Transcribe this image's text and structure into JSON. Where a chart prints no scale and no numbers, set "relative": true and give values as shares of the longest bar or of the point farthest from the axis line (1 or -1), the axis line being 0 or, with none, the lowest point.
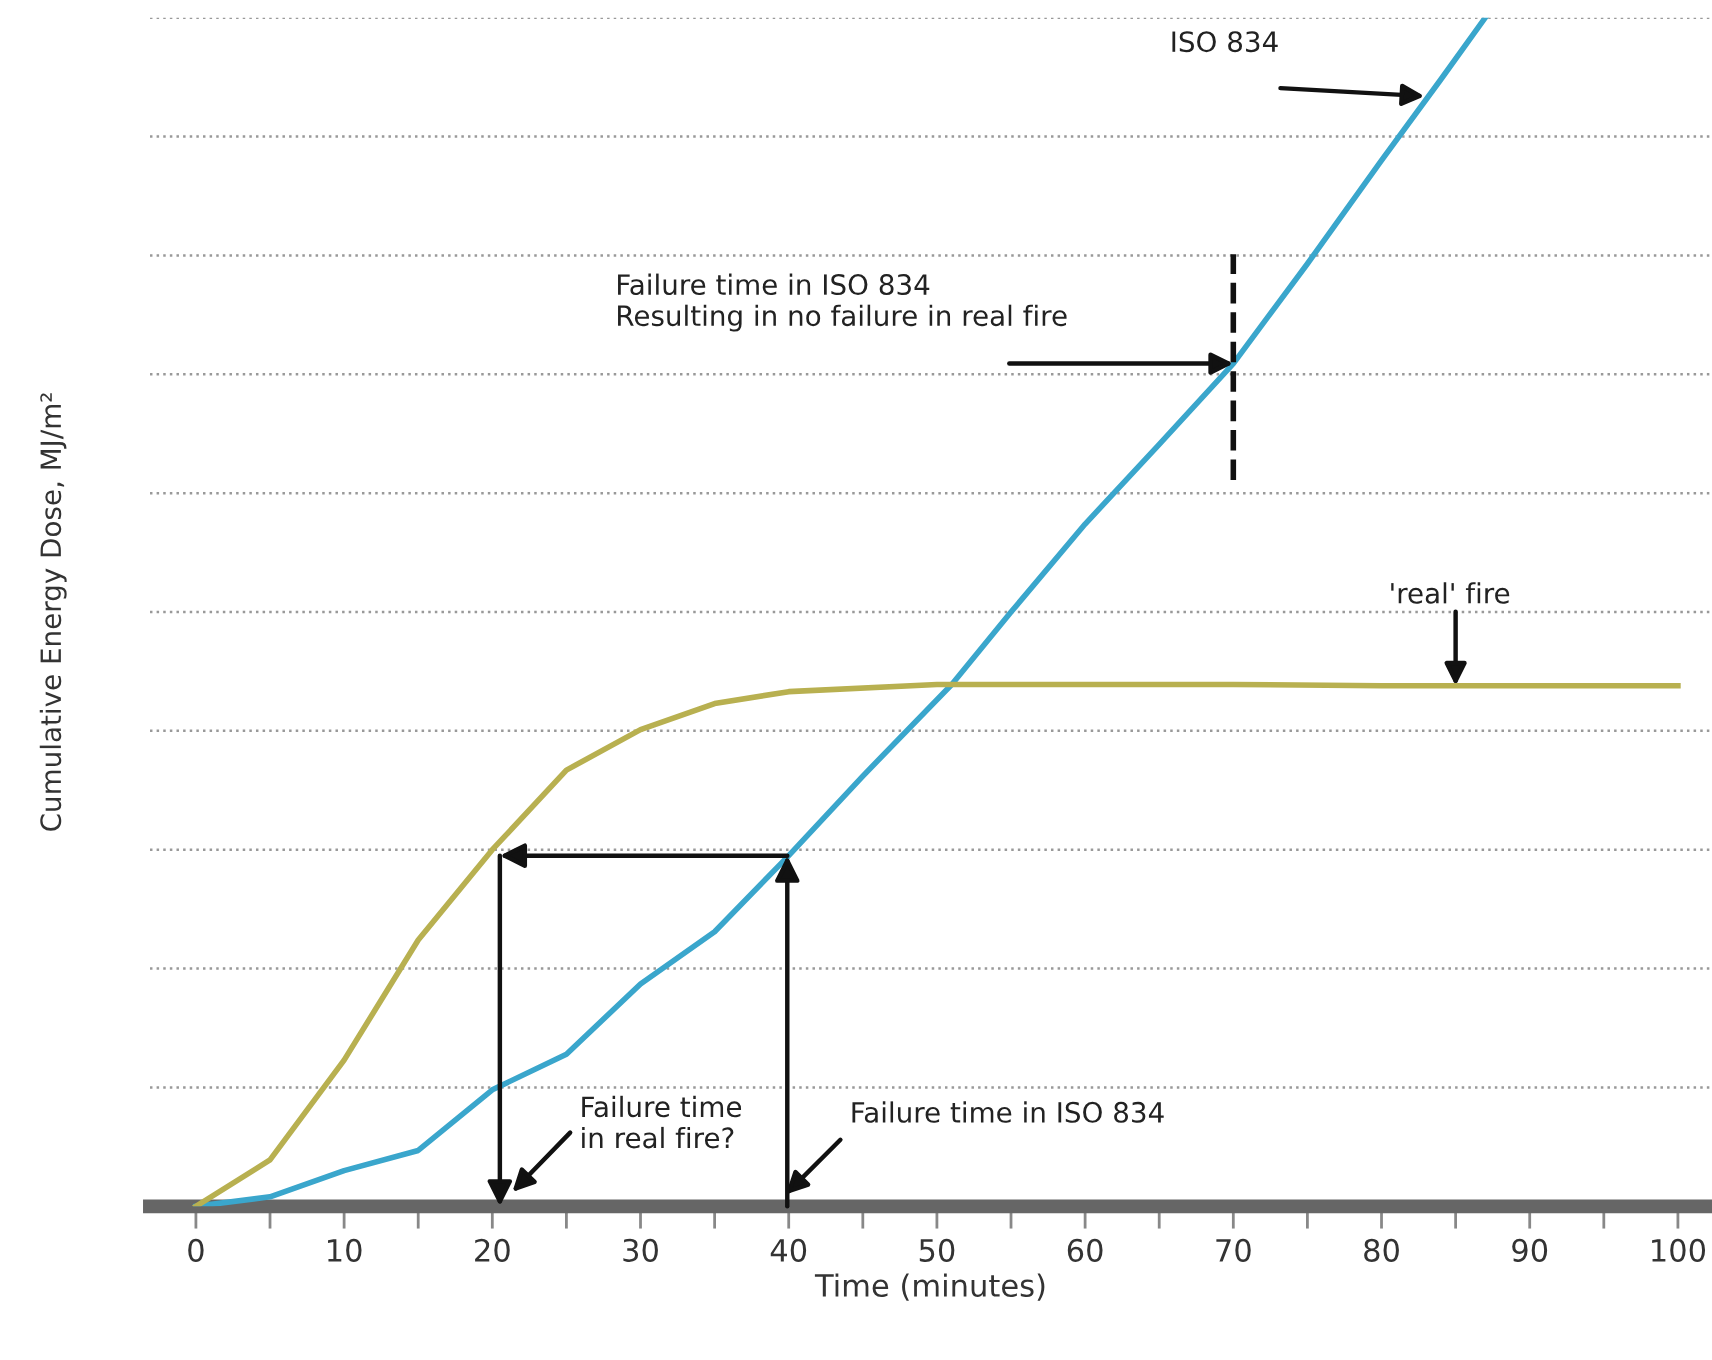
{
  "chart_data": {
    "type": "line",
    "relative": true,
    "xlabel": "Time (minutes)",
    "ylabel": "Cumulative Energy Dose, MJ/m²",
    "xlim": [
      -3.1,
      102.3
    ],
    "xticks": [
      0,
      {
        "value": 5,
        "label": null
      },
      10,
      {
        "value": 15,
        "label": null
      },
      20,
      {
        "value": 25,
        "label": null
      },
      30,
      {
        "value": 35,
        "label": null
      },
      40,
      {
        "value": 45,
        "label": null
      },
      50,
      {
        "value": 55,
        "label": null
      },
      60,
      {
        "value": 65,
        "label": null
      },
      70,
      {
        "value": 75,
        "label": null
      },
      80,
      {
        "value": 85,
        "label": null
      },
      90,
      {
        "value": 95,
        "label": null
      },
      100
    ],
    "grid": "y",
    "legend": false,
    "series": [
      {
        "color": "#3aa6cc",
        "x": [
          0,
          5,
          10,
          15,
          20,
          25,
          30,
          35,
          40,
          45,
          51,
          55,
          60,
          65,
          70,
          75,
          80,
          84,
          87
        ],
        "values": [
          0,
          0.008,
          0.03,
          0.047,
          0.098,
          0.128,
          0.187,
          0.231,
          0.295,
          0.362,
          0.439,
          0.5,
          0.574,
          0.641,
          0.709,
          0.793,
          0.88,
          0.948,
          1.0
        ]
      },
      {
        "color": "#b8b050",
        "x": [
          0,
          5,
          10,
          15,
          20,
          25,
          30,
          35,
          40,
          50,
          60,
          70,
          80,
          90,
          100
        ],
        "values": [
          0,
          0.039,
          0.123,
          0.224,
          0.3,
          0.367,
          0.401,
          0.423,
          0.433,
          0.439,
          0.439,
          0.439,
          0.438,
          0.438,
          0.438
        ]
      },
      {
        "color": "#111111",
        "line_style": "dashed",
        "x": [
          70,
          70
        ],
        "values": [
          0.611,
          0.801
        ]
      }
    ],
    "annotations": [
      {
        "text": "ISO 834",
        "x": 82.9,
        "y": 0.934
      },
      {
        "text": "Failure time in ISO 834\nResulting in no failure in real fire",
        "x": 70,
        "y": 0.709
      },
      {
        "text": "'real' fire",
        "x": 85,
        "y": 0.438
      },
      "Failure time\nin real fire?",
      "Failure time in ISO 834"
    ]
  }
}
